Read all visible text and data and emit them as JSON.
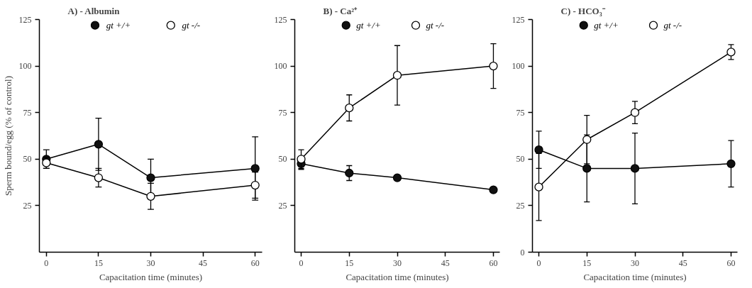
{
  "chart_data": [
    {
      "type": "line",
      "title": "A) - Albumin",
      "xlabel": "Capacitation time (minutes)",
      "ylabel": "Sperm bound/egg (% of control)",
      "x": [
        0,
        15,
        30,
        60
      ],
      "xlim": [
        -2,
        62
      ],
      "xticks": [
        0,
        15,
        30,
        45,
        60
      ],
      "ylim": [
        0,
        125
      ],
      "yticks": [
        25,
        50,
        75,
        100,
        125
      ],
      "legend": "top",
      "marker": "circle",
      "line_style": "solid",
      "grid": false,
      "series": [
        {
          "name": "gt +/+",
          "color": "#111111",
          "values": [
            50,
            58,
            40,
            45
          ],
          "errors": [
            5,
            14,
            10,
            17
          ]
        },
        {
          "name": "gt -/-",
          "color": "#ffffff",
          "values": [
            48,
            40,
            30,
            36
          ],
          "errors": [
            3,
            5,
            7,
            7
          ]
        }
      ]
    },
    {
      "type": "line",
      "title": "B) - Ca²⁺",
      "xlabel": "Capacitation time (minutes)",
      "x": [
        0,
        15,
        30,
        60
      ],
      "xlim": [
        -2,
        62
      ],
      "xticks": [
        0,
        15,
        30,
        45,
        60
      ],
      "ylim": [
        0,
        125
      ],
      "yticks": [
        25,
        50,
        75,
        100,
        125
      ],
      "legend": "top",
      "marker": "circle",
      "line_style": "solid",
      "grid": false,
      "series": [
        {
          "name": "gt +/+",
          "color": "#111111",
          "values": [
            47.5,
            42.5,
            40,
            33.5
          ],
          "errors": [
            3,
            4,
            null,
            null
          ]
        },
        {
          "name": "gt -/-",
          "color": "#ffffff",
          "values": [
            50,
            77.5,
            95,
            100
          ],
          "errors": [
            5,
            7,
            16,
            12
          ]
        }
      ]
    },
    {
      "type": "line",
      "title": "C) - HCO₃⁻",
      "xlabel": "Capacitation time (minutes)",
      "x": [
        0,
        15,
        30,
        60
      ],
      "xlim": [
        -2,
        62
      ],
      "xticks": [
        0,
        15,
        30,
        45,
        60
      ],
      "ylim": [
        0,
        125
      ],
      "yticks": [
        0,
        25,
        50,
        75,
        100,
        125
      ],
      "legend": "top",
      "marker": "circle",
      "line_style": "solid",
      "grid": false,
      "series": [
        {
          "name": "gt +/+",
          "color": "#111111",
          "values": [
            55,
            45,
            45,
            47.5
          ],
          "errors": [
            10,
            18,
            19,
            12.5
          ]
        },
        {
          "name": "gt -/-",
          "color": "#ffffff",
          "values": [
            35,
            60.5,
            75,
            107.5
          ],
          "errors": [
            18,
            13,
            6,
            4
          ]
        }
      ]
    }
  ]
}
